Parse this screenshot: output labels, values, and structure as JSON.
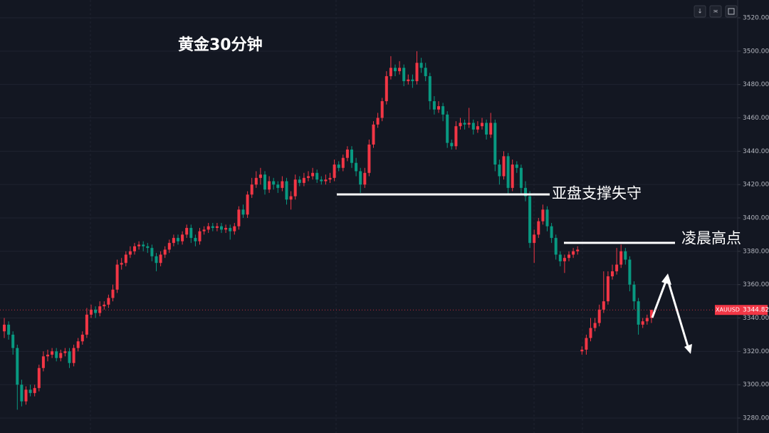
{
  "chart_data": {
    "type": "candlestick",
    "title": "黄金30分钟",
    "symbol": "XAUUSD",
    "annotations": [
      "亚盘支撑失守",
      "凌晨高点"
    ],
    "up_color": "#f23645",
    "down_color": "#089981",
    "grid": true,
    "ylim": [
      3280,
      3520
    ],
    "yticks": [
      {
        "value": 3280,
        "label": "3280.00"
      },
      {
        "value": 3300,
        "label": "3300.00"
      },
      {
        "value": 3320,
        "label": "3320.00"
      },
      {
        "value": 3340,
        "label": "3340.00"
      },
      {
        "value": 3360,
        "label": "3360.00"
      },
      {
        "value": 3380,
        "label": "3380.00"
      },
      {
        "value": 3400,
        "label": "3400.00"
      },
      {
        "value": 3420,
        "label": "3420.00"
      },
      {
        "value": 3440,
        "label": "3440.00"
      },
      {
        "value": 3460,
        "label": "3460.00"
      },
      {
        "value": 3480,
        "label": "3480.00"
      },
      {
        "value": 3500,
        "label": "3500.00"
      },
      {
        "value": 3520,
        "label": "3520.00"
      }
    ],
    "ohlc": [
      [
        3332,
        3340,
        3328,
        3336
      ],
      [
        3336,
        3338,
        3327,
        3330
      ],
      [
        3330,
        3332,
        3318,
        3322
      ],
      [
        3322,
        3324,
        3285,
        3300
      ],
      [
        3300,
        3303,
        3287,
        3290
      ],
      [
        3290,
        3299,
        3288,
        3297
      ],
      [
        3297,
        3300,
        3293,
        3295
      ],
      [
        3295,
        3300,
        3293,
        3298
      ],
      [
        3298,
        3312,
        3296,
        3310
      ],
      [
        3310,
        3320,
        3308,
        3317
      ],
      [
        3317,
        3321,
        3314,
        3318
      ],
      [
        3318,
        3322,
        3316,
        3320
      ],
      [
        3320,
        3322,
        3314,
        3316
      ],
      [
        3316,
        3321,
        3314,
        3319
      ],
      [
        3319,
        3322,
        3317,
        3320
      ],
      [
        3320,
        3322,
        3310,
        3313
      ],
      [
        3313,
        3324,
        3311,
        3322
      ],
      [
        3322,
        3328,
        3320,
        3326
      ],
      [
        3326,
        3332,
        3324,
        3330
      ],
      [
        3330,
        3346,
        3328,
        3342
      ],
      [
        3342,
        3348,
        3340,
        3345
      ],
      [
        3345,
        3347,
        3340,
        3343
      ],
      [
        3343,
        3350,
        3341,
        3347
      ],
      [
        3347,
        3350,
        3345,
        3348
      ],
      [
        3348,
        3354,
        3346,
        3352
      ],
      [
        3352,
        3360,
        3350,
        3357
      ],
      [
        3357,
        3375,
        3355,
        3372
      ],
      [
        3372,
        3376,
        3369,
        3373
      ],
      [
        3373,
        3380,
        3371,
        3378
      ],
      [
        3378,
        3383,
        3376,
        3380
      ],
      [
        3380,
        3385,
        3378,
        3383
      ],
      [
        3383,
        3386,
        3381,
        3384
      ],
      [
        3384,
        3386,
        3380,
        3383
      ],
      [
        3383,
        3385,
        3379,
        3382
      ],
      [
        3382,
        3384,
        3374,
        3377
      ],
      [
        3377,
        3379,
        3368,
        3373
      ],
      [
        3373,
        3380,
        3371,
        3378
      ],
      [
        3378,
        3383,
        3376,
        3381
      ],
      [
        3381,
        3387,
        3379,
        3385
      ],
      [
        3385,
        3390,
        3383,
        3388
      ],
      [
        3388,
        3390,
        3384,
        3386
      ],
      [
        3386,
        3392,
        3384,
        3390
      ],
      [
        3390,
        3396,
        3388,
        3394
      ],
      [
        3394,
        3396,
        3385,
        3388
      ],
      [
        3388,
        3390,
        3383,
        3386
      ],
      [
        3386,
        3394,
        3384,
        3392
      ],
      [
        3392,
        3395,
        3390,
        3393
      ],
      [
        3393,
        3397,
        3391,
        3395
      ],
      [
        3395,
        3397,
        3392,
        3394
      ],
      [
        3394,
        3397,
        3392,
        3395
      ],
      [
        3395,
        3397,
        3391,
        3393
      ],
      [
        3393,
        3396,
        3391,
        3394
      ],
      [
        3394,
        3396,
        3387,
        3392
      ],
      [
        3392,
        3397,
        3390,
        3395
      ],
      [
        3395,
        3407,
        3393,
        3405
      ],
      [
        3405,
        3408,
        3400,
        3402
      ],
      [
        3402,
        3416,
        3400,
        3414
      ],
      [
        3414,
        3424,
        3412,
        3420
      ],
      [
        3420,
        3428,
        3418,
        3424
      ],
      [
        3424,
        3430,
        3420,
        3426
      ],
      [
        3426,
        3428,
        3414,
        3417
      ],
      [
        3417,
        3425,
        3415,
        3422
      ],
      [
        3422,
        3424,
        3417,
        3420
      ],
      [
        3420,
        3422,
        3415,
        3418
      ],
      [
        3418,
        3425,
        3416,
        3422
      ],
      [
        3422,
        3424,
        3408,
        3411
      ],
      [
        3411,
        3416,
        3405,
        3413
      ],
      [
        3413,
        3426,
        3411,
        3423
      ],
      [
        3423,
        3425,
        3419,
        3421
      ],
      [
        3421,
        3427,
        3419,
        3424
      ],
      [
        3424,
        3428,
        3422,
        3425
      ],
      [
        3425,
        3430,
        3423,
        3427
      ],
      [
        3427,
        3429,
        3421,
        3423
      ],
      [
        3423,
        3425,
        3420,
        3422
      ],
      [
        3422,
        3426,
        3420,
        3423
      ],
      [
        3423,
        3427,
        3421,
        3424
      ],
      [
        3424,
        3435,
        3422,
        3432
      ],
      [
        3432,
        3434,
        3428,
        3430
      ],
      [
        3430,
        3438,
        3428,
        3436
      ],
      [
        3436,
        3443,
        3434,
        3441
      ],
      [
        3441,
        3443,
        3430,
        3433
      ],
      [
        3433,
        3436,
        3425,
        3428
      ],
      [
        3428,
        3430,
        3415,
        3420
      ],
      [
        3420,
        3430,
        3418,
        3427
      ],
      [
        3427,
        3447,
        3425,
        3444
      ],
      [
        3444,
        3458,
        3442,
        3456
      ],
      [
        3456,
        3463,
        3454,
        3460
      ],
      [
        3460,
        3472,
        3458,
        3470
      ],
      [
        3470,
        3488,
        3468,
        3485
      ],
      [
        3485,
        3497,
        3483,
        3490
      ],
      [
        3490,
        3492,
        3485,
        3488
      ],
      [
        3488,
        3494,
        3486,
        3490
      ],
      [
        3490,
        3492,
        3479,
        3482
      ],
      [
        3482,
        3486,
        3480,
        3483
      ],
      [
        3483,
        3486,
        3478,
        3482
      ],
      [
        3482,
        3500,
        3480,
        3493
      ],
      [
        3493,
        3496,
        3487,
        3490
      ],
      [
        3490,
        3493,
        3482,
        3485
      ],
      [
        3485,
        3487,
        3465,
        3470
      ],
      [
        3470,
        3473,
        3462,
        3465
      ],
      [
        3465,
        3470,
        3463,
        3467
      ],
      [
        3467,
        3469,
        3458,
        3462
      ],
      [
        3462,
        3464,
        3442,
        3445
      ],
      [
        3445,
        3447,
        3441,
        3443
      ],
      [
        3443,
        3458,
        3441,
        3455
      ],
      [
        3455,
        3460,
        3453,
        3457
      ],
      [
        3457,
        3459,
        3453,
        3456
      ],
      [
        3456,
        3466,
        3454,
        3457
      ],
      [
        3457,
        3459,
        3450,
        3453
      ],
      [
        3453,
        3458,
        3451,
        3455
      ],
      [
        3455,
        3460,
        3453,
        3457
      ],
      [
        3457,
        3459,
        3447,
        3450
      ],
      [
        3450,
        3463,
        3448,
        3457
      ],
      [
        3457,
        3459,
        3428,
        3432
      ],
      [
        3432,
        3435,
        3420,
        3425
      ],
      [
        3425,
        3440,
        3423,
        3437
      ],
      [
        3437,
        3439,
        3414,
        3418
      ],
      [
        3418,
        3435,
        3416,
        3432
      ],
      [
        3432,
        3434,
        3427,
        3430
      ],
      [
        3430,
        3432,
        3414,
        3418
      ],
      [
        3418,
        3422,
        3410,
        3413
      ],
      [
        3413,
        3416,
        3382,
        3385
      ],
      [
        3385,
        3393,
        3373,
        3390
      ],
      [
        3390,
        3400,
        3388,
        3398
      ],
      [
        3398,
        3408,
        3396,
        3405
      ],
      [
        3405,
        3407,
        3392,
        3395
      ],
      [
        3395,
        3397,
        3385,
        3388
      ],
      [
        3388,
        3390,
        3375,
        3378
      ],
      [
        3378,
        3380,
        3371,
        3374
      ],
      [
        3374,
        3378,
        3367,
        3376
      ],
      [
        3376,
        3380,
        3374,
        3378
      ],
      [
        3378,
        3382,
        3376,
        3380
      ],
      [
        3380,
        3383,
        3378,
        3381
      ],
      [
        3320,
        3323,
        3318,
        3321
      ],
      [
        3321,
        3330,
        3318,
        3328
      ],
      [
        3328,
        3340,
        3326,
        3334
      ],
      [
        3334,
        3340,
        3332,
        3337
      ],
      [
        3337,
        3348,
        3335,
        3345
      ],
      [
        3345,
        3368,
        3343,
        3350
      ],
      [
        3350,
        3368,
        3348,
        3365
      ],
      [
        3365,
        3372,
        3363,
        3368
      ],
      [
        3368,
        3382,
        3366,
        3372
      ],
      [
        3372,
        3384,
        3370,
        3380
      ],
      [
        3380,
        3382,
        3372,
        3375
      ],
      [
        3375,
        3377,
        3356,
        3360
      ],
      [
        3360,
        3362,
        3345,
        3350
      ],
      [
        3350,
        3352,
        3330,
        3336
      ],
      [
        3336,
        3340,
        3334,
        3338
      ],
      [
        3338,
        3342,
        3336,
        3340
      ],
      [
        3340,
        3345,
        3337,
        3344.82
      ]
    ]
  }
}
